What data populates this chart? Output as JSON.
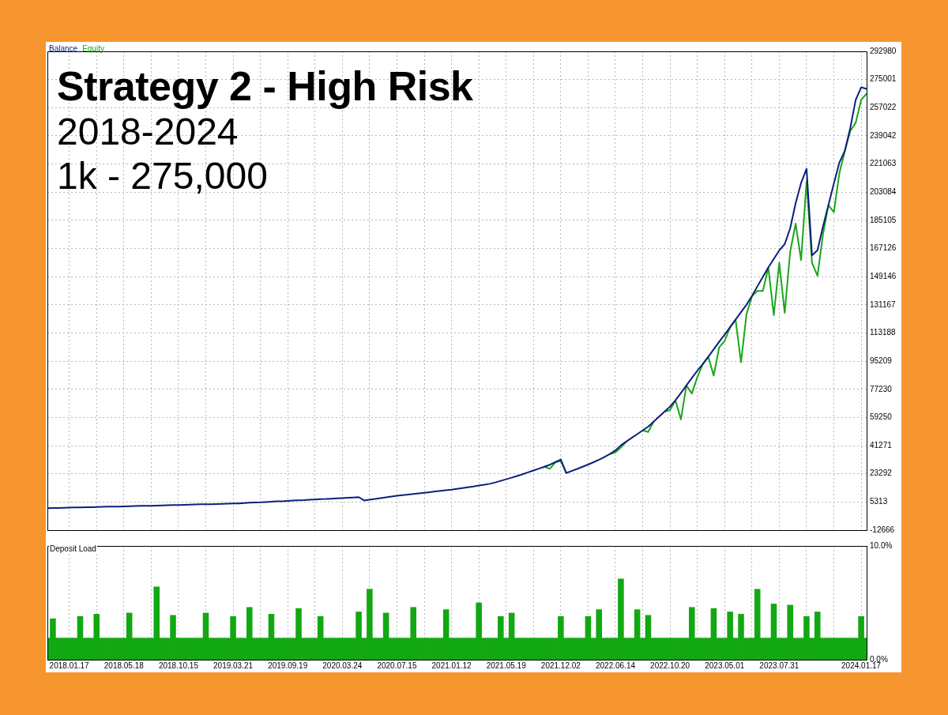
{
  "chart_data": [
    {
      "type": "line",
      "title": "Strategy 2 - High Risk",
      "subtitle": "2018-2024",
      "annotations": [
        "1k - 275,000"
      ],
      "legend": "top left",
      "grid": true,
      "tick_labels": "y",
      "categories": [
        null,
        null,
        null,
        null,
        null,
        null,
        null,
        null,
        null,
        null,
        null,
        null,
        null,
        null,
        null,
        null,
        null,
        null,
        null,
        null,
        null,
        null,
        null,
        null,
        null,
        null,
        null,
        null,
        null,
        null,
        null,
        null,
        null,
        null,
        null,
        null,
        null,
        null,
        null,
        null,
        null,
        null,
        null,
        null,
        null,
        null,
        null,
        null,
        null,
        null,
        null,
        null,
        null,
        null,
        null,
        null,
        null,
        null,
        null,
        null,
        null,
        null,
        null,
        null,
        null,
        null,
        null,
        null,
        null,
        null,
        null,
        null,
        null,
        null,
        null,
        null,
        null,
        null,
        null,
        null,
        null,
        null,
        null,
        null,
        null,
        null,
        null,
        null,
        null,
        null,
        null,
        null,
        null,
        null,
        null,
        null,
        null,
        null,
        null,
        null,
        null,
        null,
        null,
        null,
        null,
        null,
        null,
        null,
        null,
        null,
        null,
        null,
        null,
        null,
        null,
        null,
        null,
        null,
        null,
        null,
        null,
        null,
        null,
        null,
        null,
        null,
        null,
        null,
        null,
        null,
        null,
        null,
        null,
        null,
        null,
        null,
        null,
        null,
        null,
        null,
        null,
        null,
        null,
        null,
        null,
        null,
        null,
        null,
        null,
        null,
        null
      ],
      "ylim": [
        -12666,
        292980
      ],
      "yticks": [
        292980,
        275001,
        257022,
        239042,
        221063,
        203084,
        185105,
        167126,
        149146,
        131167,
        113188,
        95209,
        77230,
        59250,
        41271,
        23292,
        5313,
        -12666
      ],
      "series": [
        {
          "name": "Balance",
          "color": "#0c1f7a",
          "values": [
            1300,
            1400,
            1500,
            1600,
            1700,
            1800,
            1800,
            1900,
            2000,
            2100,
            2200,
            2300,
            2300,
            2400,
            2500,
            2600,
            2700,
            2800,
            2900,
            2900,
            3000,
            3100,
            3200,
            3300,
            3400,
            3500,
            3600,
            3700,
            3800,
            3800,
            3900,
            4000,
            4100,
            4200,
            4300,
            4400,
            4600,
            4800,
            5000,
            5100,
            5300,
            5500,
            5700,
            5800,
            6000,
            6200,
            6400,
            6500,
            6700,
            6900,
            7100,
            7200,
            7400,
            7600,
            7800,
            8000,
            8200,
            8400,
            6300,
            6800,
            7300,
            7800,
            8300,
            8800,
            9300,
            9700,
            10000,
            10400,
            10800,
            11200,
            11600,
            12000,
            12400,
            12800,
            13200,
            13700,
            14200,
            14700,
            15200,
            15800,
            16300,
            16900,
            17800,
            18800,
            19800,
            20800,
            21900,
            23000,
            24200,
            25400,
            26600,
            27800,
            29100,
            30700,
            32400,
            23800,
            25100,
            26400,
            27800,
            29200,
            30700,
            32300,
            34000,
            35900,
            38200,
            41500,
            43900,
            46300,
            48600,
            51000,
            53400,
            56600,
            59800,
            63000,
            66200,
            70200,
            74900,
            79700,
            84500,
            89100,
            93300,
            98000,
            102800,
            107600,
            112100,
            116900,
            121700,
            126500,
            131300,
            136700,
            143000,
            149000,
            155000,
            160500,
            165900,
            169900,
            180000,
            196000,
            209000,
            218000,
            162700,
            166000,
            181000,
            194800,
            208600,
            221900,
            229300,
            244000,
            262000,
            270000,
            269000
          ]
        },
        {
          "name": "Equity",
          "color": "#1aa61a",
          "values": [
            null,
            null,
            null,
            null,
            null,
            null,
            null,
            null,
            null,
            null,
            null,
            null,
            null,
            null,
            null,
            null,
            null,
            null,
            null,
            null,
            null,
            null,
            null,
            null,
            null,
            null,
            null,
            null,
            null,
            null,
            null,
            null,
            null,
            null,
            null,
            null,
            null,
            null,
            null,
            null,
            null,
            null,
            null,
            null,
            null,
            null,
            null,
            null,
            null,
            null,
            null,
            null,
            null,
            null,
            null,
            null,
            null,
            null,
            null,
            null,
            null,
            null,
            null,
            null,
            null,
            null,
            null,
            null,
            null,
            null,
            null,
            null,
            null,
            null,
            null,
            null,
            null,
            null,
            null,
            null,
            null,
            null,
            null,
            null,
            null,
            null,
            null,
            null,
            null,
            null,
            null,
            27800,
            26500,
            30700,
            31500,
            23800,
            null,
            null,
            null,
            null,
            null,
            null,
            null,
            35900,
            37000,
            40000,
            43900,
            null,
            null,
            51000,
            50000,
            56600,
            null,
            63000,
            64000,
            70200,
            58000,
            79700,
            74500,
            85000,
            93300,
            98000,
            86000,
            104000,
            108000,
            116900,
            121700,
            94500,
            125000,
            136700,
            140000,
            140000,
            155000,
            124600,
            158000,
            126100,
            165000,
            183000,
            159700,
            210000,
            158000,
            149700,
            176000,
            194800,
            190300,
            215000,
            229300,
            242000,
            247400,
            262000,
            266000
          ]
        }
      ]
    },
    {
      "type": "bar",
      "title": "Deposit Load",
      "grid": "x",
      "categories": [
        null,
        null,
        null,
        null,
        "2018.01.17",
        null,
        null,
        null,
        null,
        null,
        null,
        null,
        null,
        null,
        "2018.05.18",
        null,
        null,
        null,
        null,
        null,
        null,
        null,
        null,
        null,
        "2018.10.15",
        null,
        null,
        null,
        null,
        null,
        null,
        null,
        null,
        null,
        "2019.03.21",
        null,
        null,
        null,
        null,
        null,
        null,
        null,
        null,
        null,
        "2019.09.19",
        null,
        null,
        null,
        null,
        null,
        null,
        null,
        null,
        null,
        "2020.03.24",
        null,
        null,
        null,
        null,
        null,
        null,
        null,
        null,
        null,
        "2020.07.15",
        null,
        null,
        null,
        null,
        null,
        null,
        null,
        null,
        null,
        "2021.01.12",
        null,
        null,
        null,
        null,
        null,
        null,
        null,
        null,
        null,
        "2021.05.19",
        null,
        null,
        null,
        null,
        null,
        null,
        null,
        null,
        null,
        "2021.12.02",
        null,
        null,
        null,
        null,
        null,
        null,
        null,
        null,
        null,
        "2022.06.14",
        null,
        null,
        null,
        null,
        null,
        null,
        null,
        null,
        null,
        "2022.10.20",
        null,
        null,
        null,
        null,
        null,
        null,
        null,
        null,
        null,
        "2023.05.01",
        null,
        null,
        null,
        null,
        null,
        null,
        null,
        null,
        null,
        "2023.07.31",
        null,
        null,
        null,
        null,
        null,
        null,
        null,
        null,
        null,
        null,
        null,
        null,
        null,
        null,
        "2024.01.17",
        null
      ],
      "ylim": [
        0,
        10
      ],
      "yticks": [
        {
          "value": 0,
          "label": "0.0%"
        },
        {
          "value": 10,
          "label": "10.0%"
        }
      ],
      "series": [
        {
          "color": "#12a812",
          "values": [
            1.9,
            3.6,
            1.9,
            1.9,
            1.9,
            1.9,
            3.8,
            1.9,
            1.9,
            4.0,
            1.9,
            1.9,
            1.9,
            1.9,
            1.9,
            4.1,
            1.9,
            1.9,
            1.9,
            1.9,
            6.4,
            1.9,
            1.9,
            3.9,
            1.9,
            1.9,
            1.9,
            1.9,
            1.9,
            4.1,
            1.9,
            1.9,
            1.9,
            1.9,
            3.8,
            1.9,
            1.9,
            4.6,
            1.9,
            1.9,
            1.9,
            4.0,
            1.9,
            1.9,
            1.9,
            1.9,
            4.5,
            1.9,
            1.9,
            1.9,
            3.8,
            1.9,
            1.9,
            1.9,
            1.9,
            1.9,
            1.9,
            4.2,
            1.9,
            6.2,
            1.9,
            1.9,
            4.1,
            1.9,
            1.9,
            1.9,
            1.9,
            4.6,
            1.9,
            1.9,
            1.9,
            1.9,
            1.9,
            4.4,
            1.9,
            1.9,
            1.9,
            1.9,
            1.9,
            5.0,
            1.9,
            1.9,
            1.9,
            3.8,
            1.9,
            4.1,
            1.9,
            1.9,
            1.9,
            1.9,
            1.9,
            1.9,
            1.9,
            1.9,
            3.8,
            1.9,
            1.9,
            1.9,
            1.9,
            3.8,
            1.9,
            4.4,
            1.9,
            1.9,
            1.9,
            7.1,
            1.9,
            1.9,
            4.4,
            1.9,
            3.9,
            1.9,
            1.9,
            1.9,
            1.9,
            1.9,
            1.9,
            1.9,
            4.6,
            1.9,
            1.9,
            1.9,
            4.5,
            1.9,
            1.9,
            4.2,
            1.9,
            4.0,
            1.9,
            1.9,
            6.2,
            1.9,
            1.9,
            4.9,
            1.9,
            1.9,
            4.8,
            1.9,
            1.9,
            3.8,
            1.9,
            4.2,
            1.9,
            1.9,
            1.9,
            1.9,
            1.9,
            1.9,
            1.9,
            3.8,
            1.9
          ]
        }
      ]
    }
  ]
}
